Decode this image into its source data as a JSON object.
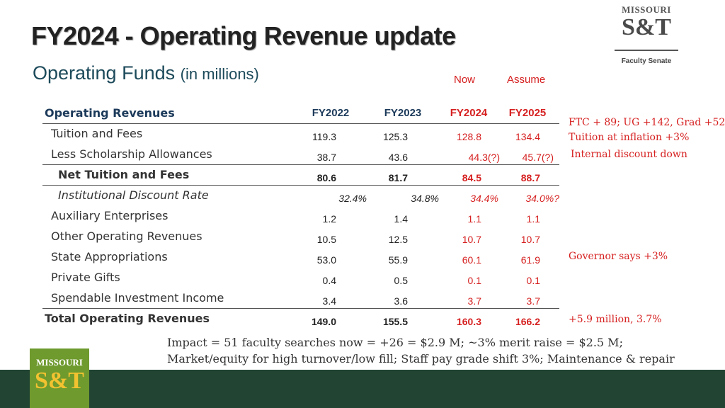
{
  "title": "FY2024 - Operating Revenue update",
  "subtitle": "Operating Funds",
  "subtitle_unit": "(in millions)",
  "column_tags": {
    "now": "Now",
    "assume": "Assume"
  },
  "logo_top": {
    "line1": "MISSOURI",
    "line2": "S&T",
    "caption": "Faculty Senate"
  },
  "logo_bottom": {
    "line1": "MISSOURI",
    "line2": "S&T"
  },
  "table": {
    "header_label": "Operating Revenues",
    "columns": [
      "FY2022",
      "FY2023",
      "FY2024",
      "FY2025"
    ],
    "rows": [
      {
        "label": "Tuition and Fees",
        "values": [
          "119.3",
          "125.3",
          "128.8",
          "134.4"
        ]
      },
      {
        "label": "Less Scholarship Allowances",
        "values": [
          "38.7",
          "43.6",
          "44.3(?)",
          "45.7(?)"
        ]
      },
      {
        "label": "Net Tuition and Fees",
        "values": [
          "80.6",
          "81.7",
          "84.5",
          "88.7"
        ]
      },
      {
        "label": "Institutional Discount Rate",
        "values": [
          "32.4%",
          "34.8%",
          "34.4%",
          "34.0%?"
        ]
      },
      {
        "label": "Auxiliary Enterprises",
        "values": [
          "1.2",
          "1.4",
          "1.1",
          "1.1"
        ]
      },
      {
        "label": "Other Operating Revenues",
        "values": [
          "10.5",
          "12.5",
          "10.7",
          "10.7"
        ]
      },
      {
        "label": "State Appropriations",
        "values": [
          "53.0",
          "55.9",
          "60.1",
          "61.9"
        ]
      },
      {
        "label": "Private Gifts",
        "values": [
          "0.4",
          "0.5",
          "0.1",
          "0.1"
        ]
      },
      {
        "label": "Spendable Investment Income",
        "values": [
          "3.4",
          "3.6",
          "3.7",
          "3.7"
        ]
      },
      {
        "label": "Total Operating Revenues",
        "values": [
          "149.0",
          "155.5",
          "160.3",
          "166.2"
        ]
      }
    ]
  },
  "notes": {
    "tuition_1": "FTC + 89; UG +142, Grad +52",
    "tuition_2": "Tuition at inflation +3%",
    "discount": "Internal discount down",
    "state": "Governor says +3%",
    "total": "+5.9 million, 3.7%"
  },
  "impact": {
    "line1": "Impact = 51 faculty searches now = +26 = $2.9 M; ~3% merit raise = $2.5 M;",
    "line2": "Market/equity for high turnover/low fill; Staff pay grade shift 3%; Maintenance & repair"
  },
  "colors": {
    "accent_red": "#d62020",
    "footer_green": "#224433",
    "logo_green": "#6f9a2e",
    "logo_gold": "#f2c230"
  }
}
